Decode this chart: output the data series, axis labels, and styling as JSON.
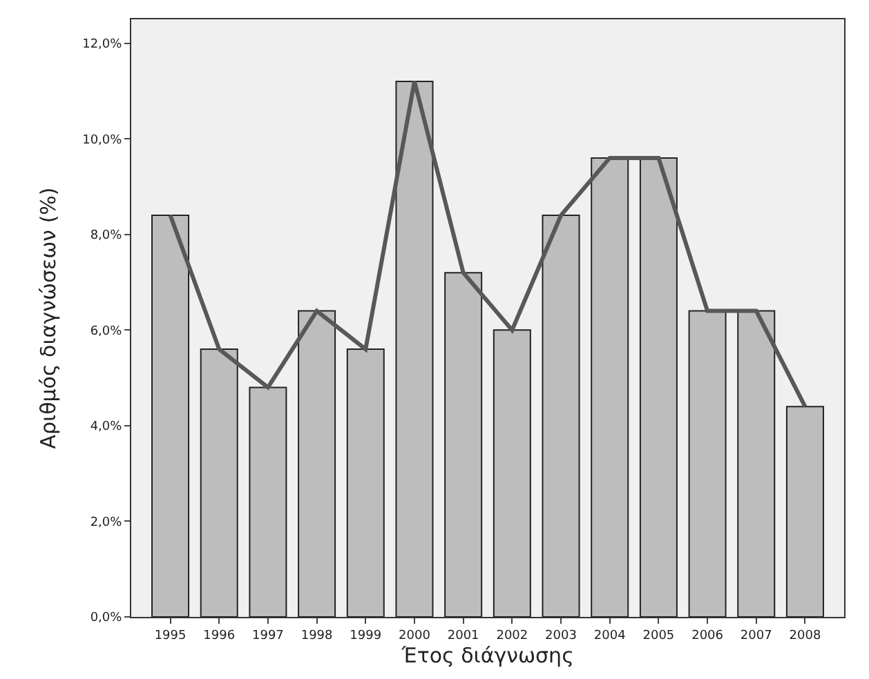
{
  "chart_data": {
    "type": "bar",
    "xlabel": "Έτος διάγνωσης",
    "ylabel": "Αριθμός διαγνώσεων (%)",
    "categories": [
      "1995",
      "1996",
      "1997",
      "1998",
      "1999",
      "2000",
      "2001",
      "2002",
      "2003",
      "2004",
      "2005",
      "2006",
      "2007",
      "2008"
    ],
    "series": [
      {
        "color": "#bdbdbd",
        "values": [
          8.4,
          5.6,
          4.8,
          6.4,
          5.6,
          11.2,
          7.2,
          6.0,
          8.4,
          9.6,
          9.6,
          6.4,
          6.4,
          4.4
        ]
      },
      {
        "type": "line",
        "color": "#585858",
        "values": [
          8.4,
          5.6,
          4.8,
          6.4,
          5.6,
          11.2,
          7.2,
          6.0,
          8.4,
          9.6,
          9.6,
          6.4,
          6.4,
          4.4
        ]
      }
    ],
    "ylim": [
      0,
      12.5
    ],
    "yticks": [
      {
        "value": 0,
        "label": "0,0%"
      },
      {
        "value": 2,
        "label": "2,0%"
      },
      {
        "value": 4,
        "label": "4,0%"
      },
      {
        "value": 6,
        "label": "6,0%"
      },
      {
        "value": 8,
        "label": "8,0%"
      },
      {
        "value": 10,
        "label": "10,0%"
      },
      {
        "value": 12,
        "label": "12,0%"
      }
    ],
    "grid": false,
    "legend": false,
    "marker": "none",
    "line_style": "solid"
  }
}
